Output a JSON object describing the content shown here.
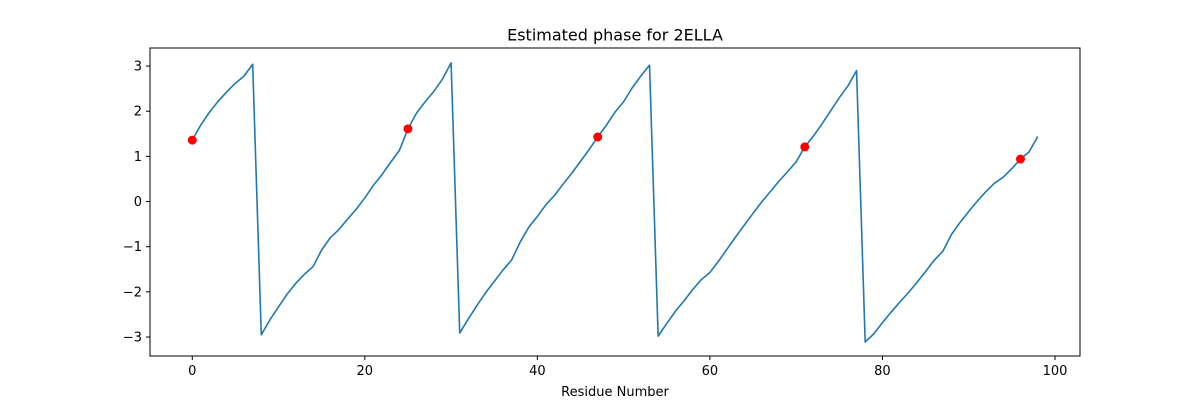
{
  "chart_data": {
    "type": "line",
    "title": "Estimated phase for 2ELLA",
    "xlabel": "Residue Number",
    "ylabel": "",
    "xlim": [
      -4.9,
      102.9
    ],
    "ylim": [
      -3.42,
      3.4
    ],
    "xticks": [
      0,
      20,
      40,
      60,
      80,
      100
    ],
    "yticks": [
      -3,
      -2,
      -1,
      0,
      1,
      2,
      3
    ],
    "grid": false,
    "legend": false,
    "series": [
      {
        "color": "#1f77b4",
        "x": [
          0,
          1,
          2,
          3,
          4,
          5,
          6,
          7,
          8,
          9,
          10,
          11,
          12,
          13,
          14,
          15,
          16,
          17,
          18,
          19,
          20,
          21,
          22,
          23,
          24,
          25,
          26,
          27,
          28,
          29,
          30,
          31,
          32,
          33,
          34,
          35,
          36,
          37,
          38,
          39,
          40,
          41,
          42,
          43,
          44,
          45,
          46,
          47,
          48,
          49,
          50,
          51,
          52,
          53,
          54,
          55,
          56,
          57,
          58,
          59,
          60,
          61,
          62,
          63,
          64,
          65,
          66,
          67,
          68,
          69,
          70,
          71,
          72,
          73,
          74,
          75,
          76,
          77,
          78,
          79,
          80,
          81,
          82,
          83,
          84,
          85,
          86,
          87,
          88,
          89,
          90,
          91,
          92,
          93,
          94,
          95,
          96,
          97,
          98
        ],
        "y": [
          1.36,
          1.7,
          1.98,
          2.22,
          2.43,
          2.62,
          2.78,
          3.04,
          -2.95,
          -2.62,
          -2.33,
          -2.05,
          -1.81,
          -1.61,
          -1.44,
          -1.07,
          -0.8,
          -0.62,
          -0.39,
          -0.17,
          0.08,
          0.36,
          0.6,
          0.87,
          1.13,
          1.61,
          1.96,
          2.21,
          2.44,
          2.71,
          3.07,
          -2.91,
          -2.6,
          -2.3,
          -2.02,
          -1.77,
          -1.52,
          -1.3,
          -0.9,
          -0.57,
          -0.33,
          -0.07,
          0.14,
          0.39,
          0.63,
          0.89,
          1.15,
          1.43,
          1.69,
          1.98,
          2.21,
          2.52,
          2.78,
          3.02,
          -2.98,
          -2.7,
          -2.43,
          -2.2,
          -1.95,
          -1.73,
          -1.57,
          -1.32,
          -1.05,
          -0.78,
          -0.52,
          -0.26,
          -0.01,
          0.22,
          0.45,
          0.66,
          0.88,
          1.21,
          1.45,
          1.72,
          2.01,
          2.3,
          2.56,
          2.9,
          -3.11,
          -2.93,
          -2.68,
          -2.45,
          -2.23,
          -2.02,
          -1.79,
          -1.55,
          -1.3,
          -1.1,
          -0.73,
          -0.46,
          -0.22,
          0.01,
          0.22,
          0.41,
          0.54,
          0.73,
          0.94,
          1.1,
          1.44
        ]
      },
      {
        "color": "#ff0000",
        "marker": "o",
        "x": [
          0,
          25,
          47,
          71,
          96
        ],
        "y": [
          1.36,
          1.61,
          1.43,
          1.21,
          0.94
        ]
      }
    ]
  }
}
